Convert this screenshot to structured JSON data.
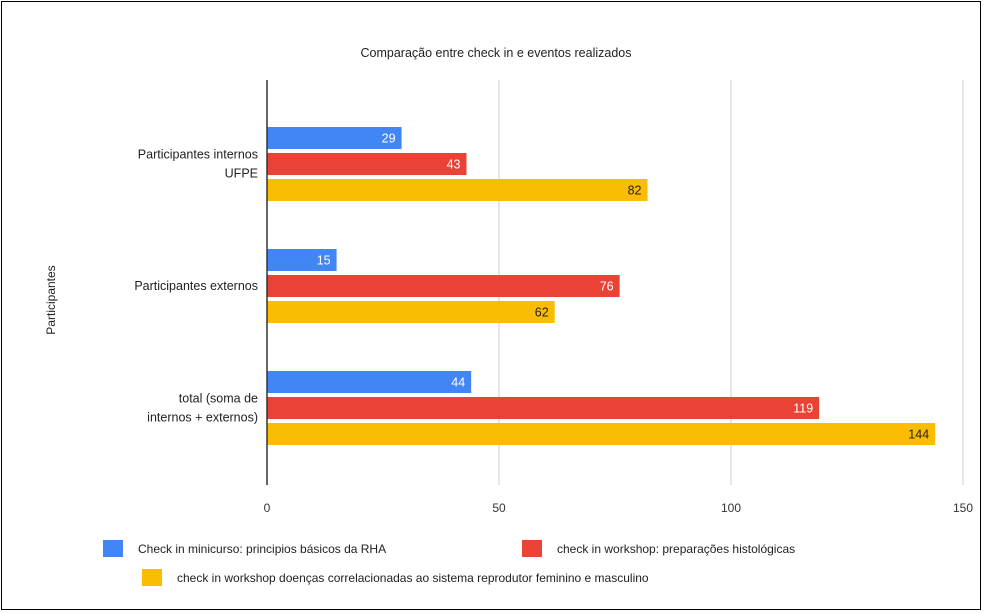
{
  "chart_data": {
    "type": "bar",
    "orientation": "horizontal",
    "title": "Comparação entre check in e eventos realizados",
    "xlabel": "",
    "ylabel": "Participantes",
    "xlim": [
      0,
      150
    ],
    "x_ticks": [
      0,
      50,
      100,
      150
    ],
    "grid": true,
    "legend_position": "bottom",
    "categories": [
      [
        "Participantes internos",
        "UFPE"
      ],
      [
        "Participantes externos"
      ],
      [
        "total (soma de",
        "internos + externos)"
      ]
    ],
    "series": [
      {
        "name": "Check in minicurso: principios básicos da RHA",
        "color": "#4285f4",
        "values": [
          29,
          15,
          44
        ]
      },
      {
        "name": "check in workshop: preparações histológicas",
        "color": "#ea4335",
        "values": [
          43,
          76,
          119
        ]
      },
      {
        "name": "check in workshop doenças correlacionadas ao sistema reprodutor feminino e masculino",
        "color": "#fbbc04",
        "values": [
          82,
          62,
          144
        ]
      }
    ]
  }
}
